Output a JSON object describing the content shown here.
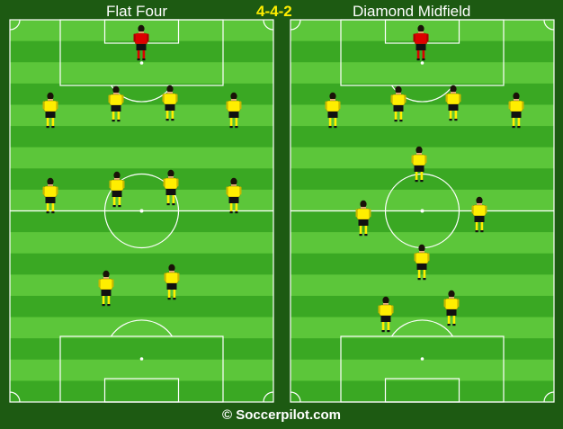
{
  "header": {
    "left_title": "Flat Four",
    "center_title": "4-4-2",
    "right_title": "Diamond Midfield"
  },
  "footer": {
    "credit": "© Soccerpilot.com"
  },
  "colors": {
    "background": "#1d5a12",
    "stripe_light": "#5cc63a",
    "stripe_dark": "#3aa823",
    "outfield_shirt": "#ffee00",
    "goalkeeper_shirt": "#dd0000",
    "shorts": "#111111",
    "center_title": "#ffee00"
  },
  "pitches": [
    {
      "name": "Flat Four",
      "goalkeeper": "red",
      "players": 11
    },
    {
      "name": "Diamond Midfield",
      "goalkeeper": "red",
      "players": 11
    }
  ]
}
